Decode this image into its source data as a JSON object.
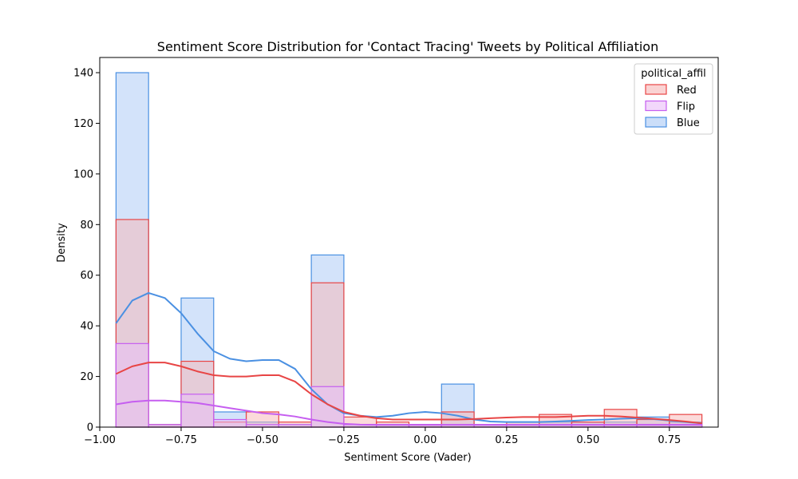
{
  "chart_data": {
    "type": "histogram",
    "title": "Sentiment Score Distribution for 'Contact Tracing' Tweets by Political Affiliation",
    "xlabel": "Sentiment Score (Vader)",
    "ylabel": "Density",
    "xlim": [
      -1.0,
      0.9
    ],
    "ylim": [
      0,
      146
    ],
    "xticks": [
      -1.0,
      -0.75,
      -0.5,
      -0.25,
      0.0,
      0.25,
      0.5,
      0.75
    ],
    "xtick_labels": [
      "−1.00",
      "−0.75",
      "−0.50",
      "−0.25",
      "0.00",
      "0.25",
      "0.50",
      "0.75"
    ],
    "yticks": [
      0,
      20,
      40,
      60,
      80,
      100,
      120,
      140
    ],
    "bin_edges": [
      -0.95,
      -0.85,
      -0.75,
      -0.65,
      -0.55,
      -0.45,
      -0.35,
      -0.25,
      -0.15,
      -0.05,
      0.05,
      0.15,
      0.25,
      0.35,
      0.45,
      0.55,
      0.65,
      0.75,
      0.85
    ],
    "legend_title": "political_affil",
    "legend_position": "upper right",
    "grid": false,
    "series": [
      {
        "name": "Blue",
        "color": "#4a90e2",
        "fill": "#a8c8f5",
        "counts": [
          140,
          1,
          51,
          6,
          2,
          1,
          68,
          1,
          1,
          1,
          17,
          1,
          1,
          2,
          2,
          2,
          4,
          2
        ],
        "kde_x": [
          -0.95,
          -0.9,
          -0.85,
          -0.8,
          -0.75,
          -0.7,
          -0.65,
          -0.6,
          -0.55,
          -0.5,
          -0.45,
          -0.4,
          -0.35,
          -0.3,
          -0.25,
          -0.2,
          -0.15,
          -0.1,
          -0.05,
          0.0,
          0.05,
          0.1,
          0.15,
          0.2,
          0.25,
          0.3,
          0.35,
          0.4,
          0.45,
          0.5,
          0.55,
          0.6,
          0.65,
          0.7,
          0.75,
          0.8,
          0.85
        ],
        "kde_y": [
          41,
          50,
          53,
          51,
          45,
          37,
          30,
          27,
          26,
          26.5,
          26.5,
          23,
          15,
          9,
          5.5,
          4.5,
          4,
          4.5,
          5.5,
          6,
          5.5,
          4.5,
          3,
          2.2,
          2,
          2,
          2,
          2.2,
          2.5,
          2.8,
          3,
          3.3,
          3.5,
          3.2,
          2.6,
          2,
          1.5
        ]
      },
      {
        "name": "Red",
        "color": "#e84545",
        "fill": "#f7b6b6",
        "counts": [
          82,
          1,
          26,
          2,
          6,
          2,
          57,
          4,
          2,
          1,
          6,
          1,
          2,
          5,
          2,
          7,
          3,
          5
        ],
        "kde_x": [
          -0.95,
          -0.9,
          -0.85,
          -0.8,
          -0.75,
          -0.7,
          -0.65,
          -0.6,
          -0.55,
          -0.5,
          -0.45,
          -0.4,
          -0.35,
          -0.3,
          -0.25,
          -0.2,
          -0.15,
          -0.1,
          -0.05,
          0.0,
          0.05,
          0.1,
          0.15,
          0.2,
          0.25,
          0.3,
          0.35,
          0.4,
          0.45,
          0.5,
          0.55,
          0.6,
          0.65,
          0.7,
          0.75,
          0.8,
          0.85
        ],
        "kde_y": [
          21,
          24,
          25.5,
          25.5,
          24,
          22,
          20.5,
          20,
          20,
          20.5,
          20.5,
          18,
          13,
          9,
          6,
          4.5,
          3.5,
          3,
          3,
          3,
          3,
          3,
          3.2,
          3.5,
          3.8,
          4,
          4,
          4,
          4.2,
          4.5,
          4.5,
          4.2,
          3.8,
          3.3,
          2.8,
          2.2,
          1.5
        ]
      },
      {
        "name": "Flip",
        "color": "#c65ef0",
        "fill": "#e9bdf8",
        "counts": [
          33,
          1,
          13,
          3,
          1,
          1,
          16,
          1,
          1,
          1,
          1,
          1,
          1,
          1,
          1,
          1,
          1,
          1
        ],
        "kde_x": [
          -0.95,
          -0.9,
          -0.85,
          -0.8,
          -0.75,
          -0.7,
          -0.65,
          -0.6,
          -0.55,
          -0.5,
          -0.45,
          -0.4,
          -0.35,
          -0.3,
          -0.25,
          -0.2,
          -0.15,
          -0.1,
          -0.05,
          0.0,
          0.05,
          0.1,
          0.15,
          0.2,
          0.25,
          0.3,
          0.35,
          0.4,
          0.45,
          0.5,
          0.55,
          0.6,
          0.65,
          0.7,
          0.75,
          0.8,
          0.85
        ],
        "kde_y": [
          9,
          10,
          10.5,
          10.5,
          10,
          9.5,
          8.5,
          7.5,
          6.5,
          5.5,
          5,
          4.2,
          3,
          2,
          1.3,
          1,
          0.9,
          0.9,
          0.9,
          0.9,
          0.9,
          0.9,
          0.9,
          0.9,
          0.9,
          0.9,
          0.9,
          0.9,
          0.9,
          0.9,
          0.9,
          0.9,
          0.9,
          0.9,
          0.9,
          0.9,
          0.9
        ]
      }
    ],
    "legend_order": [
      "Red",
      "Flip",
      "Blue"
    ]
  }
}
